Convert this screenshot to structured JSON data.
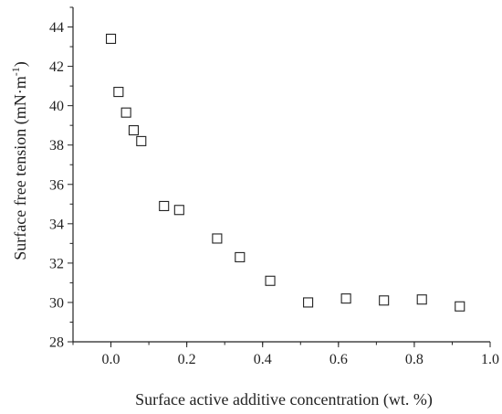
{
  "chart_data": {
    "type": "scatter",
    "title": "",
    "xlabel": "Surface active additive concentration (wt. %)",
    "ylabel": "Surface free tension (mN·m",
    "ylabel_superscript": "-1",
    "ylabel_suffix": ")",
    "xlim": [
      -0.1,
      1.0
    ],
    "ylim": [
      28,
      45
    ],
    "xticks": [
      0.0,
      0.2,
      0.4,
      0.6,
      0.8,
      1.0
    ],
    "xtick_labels": [
      "0.0",
      "0.2",
      "0.4",
      "0.6",
      "0.8",
      "1.0"
    ],
    "yticks": [
      28,
      30,
      32,
      34,
      36,
      38,
      40,
      42,
      44
    ],
    "ytick_labels": [
      "28",
      "30",
      "32",
      "34",
      "36",
      "38",
      "40",
      "42",
      "44"
    ],
    "grid": false,
    "legend": "none",
    "marker": "open-square",
    "series": [
      {
        "points": [
          {
            "x": 0.0,
            "y": 43.4
          },
          {
            "x": 0.02,
            "y": 40.7
          },
          {
            "x": 0.04,
            "y": 39.65
          },
          {
            "x": 0.06,
            "y": 38.75
          },
          {
            "x": 0.08,
            "y": 38.2
          },
          {
            "x": 0.14,
            "y": 34.9
          },
          {
            "x": 0.18,
            "y": 34.7
          },
          {
            "x": 0.28,
            "y": 33.25
          },
          {
            "x": 0.34,
            "y": 32.3
          },
          {
            "x": 0.42,
            "y": 31.1
          },
          {
            "x": 0.52,
            "y": 30.0
          },
          {
            "x": 0.62,
            "y": 30.2
          },
          {
            "x": 0.72,
            "y": 30.1
          },
          {
            "x": 0.82,
            "y": 30.15
          },
          {
            "x": 0.92,
            "y": 29.8
          }
        ]
      }
    ]
  }
}
